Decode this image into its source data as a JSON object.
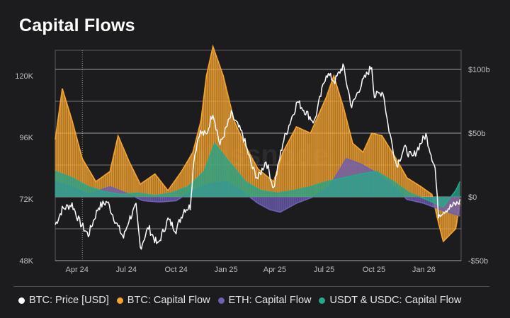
{
  "title": "Capital Flows",
  "watermark": "glassnode",
  "colors": {
    "background": "#1c1c1e",
    "grid": "#ffffff",
    "btc_price": "#ffffff",
    "btc_flow": "#f7a531",
    "eth_flow": "#6f5fb5",
    "usdt_usdc_flow": "#26a98d"
  },
  "legend": [
    {
      "label": "BTC: Price [USD]",
      "color": "#ffffff"
    },
    {
      "label": "BTC: Capital Flow",
      "color": "#f7a531"
    },
    {
      "label": "ETH: Capital Flow",
      "color": "#6f5fb5"
    },
    {
      "label": "USDT & USDC: Capital Flow",
      "color": "#26a98d"
    }
  ],
  "chart_data": {
    "type": "line",
    "x_ticks": [
      "Apr 24",
      "Jul 24",
      "Oct 24",
      "Jan 25",
      "Apr 25",
      "Jul 25",
      "Oct 25",
      "Jan 26"
    ],
    "x_tick_dates": [
      "2024-04-01",
      "2024-07-01",
      "2024-10-01",
      "2025-01-01",
      "2025-04-01",
      "2025-07-01",
      "2025-10-01",
      "2026-01-01"
    ],
    "xlim": [
      "2024-03-01",
      "2026-03-20"
    ],
    "left_axis": {
      "ticks": [
        "48K",
        "72K",
        "96K",
        "120K"
      ],
      "tick_values": [
        48000,
        72000,
        96000,
        120000
      ],
      "ylim": [
        48000,
        130000
      ]
    },
    "right_axis": {
      "ticks": [
        "-$50b",
        "$0",
        "$50b",
        "$100b"
      ],
      "tick_values": [
        -50,
        0,
        50,
        100
      ],
      "ylim": [
        -50,
        115
      ],
      "unit": "USD billions"
    },
    "grid": true,
    "legend_position": "bottom",
    "series": [
      {
        "name": "BTC: Price [USD]",
        "axis": "left",
        "style": "line",
        "x": [
          "2024-03-01",
          "2024-03-14",
          "2024-04-01",
          "2024-04-15",
          "2024-05-01",
          "2024-05-20",
          "2024-06-05",
          "2024-06-25",
          "2024-07-05",
          "2024-07-15",
          "2024-07-28",
          "2024-08-05",
          "2024-08-20",
          "2024-09-06",
          "2024-09-25",
          "2024-10-10",
          "2024-10-25",
          "2024-11-05",
          "2024-11-12",
          "2024-11-22",
          "2024-12-05",
          "2024-12-17",
          "2024-12-30",
          "2025-01-20",
          "2025-02-10",
          "2025-02-28",
          "2025-03-10",
          "2025-03-25",
          "2025-04-08",
          "2025-04-25",
          "2025-05-10",
          "2025-05-22",
          "2025-06-10",
          "2025-06-22",
          "2025-07-14",
          "2025-07-30",
          "2025-08-14",
          "2025-08-30",
          "2025-09-15",
          "2025-10-06",
          "2025-10-11",
          "2025-10-27",
          "2025-11-05",
          "2025-11-21",
          "2025-12-05",
          "2025-12-20",
          "2026-01-05",
          "2026-01-14",
          "2026-01-31",
          "2026-02-06",
          "2026-02-20",
          "2026-03-10",
          "2026-03-18"
        ],
        "values": [
          62000,
          68000,
          70000,
          63000,
          58000,
          69000,
          71000,
          61000,
          57000,
          64000,
          69000,
          53000,
          61000,
          54000,
          64000,
          60000,
          68000,
          69000,
          88000,
          98000,
          97000,
          106000,
          93000,
          105000,
          97000,
          84000,
          80000,
          87000,
          76000,
          94000,
          103000,
          110000,
          105000,
          102000,
          121000,
          118000,
          124000,
          108000,
          116000,
          124000,
          112000,
          114000,
          101000,
          85000,
          92000,
          88000,
          94000,
          97000,
          84000,
          66000,
          68000,
          70000,
          71000
        ]
      },
      {
        "name": "BTC: Capital Flow",
        "axis": "right",
        "style": "area",
        "x": [
          "2024-03-01",
          "2024-03-14",
          "2024-04-01",
          "2024-04-20",
          "2024-05-15",
          "2024-06-10",
          "2024-06-25",
          "2024-07-15",
          "2024-08-05",
          "2024-09-01",
          "2024-09-25",
          "2024-10-20",
          "2024-11-10",
          "2024-11-25",
          "2024-12-05",
          "2024-12-17",
          "2025-01-05",
          "2025-01-25",
          "2025-02-15",
          "2025-03-10",
          "2025-04-08",
          "2025-04-25",
          "2025-05-20",
          "2025-06-15",
          "2025-07-14",
          "2025-07-28",
          "2025-08-15",
          "2025-09-01",
          "2025-09-20",
          "2025-10-06",
          "2025-10-25",
          "2025-11-20",
          "2025-12-10",
          "2026-01-05",
          "2026-01-25",
          "2026-02-06",
          "2026-02-15",
          "2026-03-10",
          "2026-03-18"
        ],
        "values": [
          45,
          85,
          60,
          30,
          12,
          20,
          48,
          28,
          10,
          18,
          5,
          20,
          35,
          60,
          95,
          118,
          95,
          60,
          40,
          22,
          12,
          35,
          55,
          50,
          78,
          95,
          70,
          42,
          35,
          50,
          48,
          30,
          15,
          8,
          2,
          -20,
          -35,
          -25,
          -5
        ]
      },
      {
        "name": "ETH: Capital Flow",
        "axis": "right",
        "style": "area",
        "x": [
          "2024-03-01",
          "2024-04-01",
          "2024-05-01",
          "2024-06-10",
          "2024-07-10",
          "2024-08-10",
          "2024-09-10",
          "2024-10-10",
          "2024-11-10",
          "2024-12-10",
          "2025-01-10",
          "2025-02-10",
          "2025-03-10",
          "2025-04-01",
          "2025-04-20",
          "2025-05-20",
          "2025-06-20",
          "2025-07-20",
          "2025-08-20",
          "2025-09-15",
          "2025-10-10",
          "2025-11-10",
          "2025-12-10",
          "2026-01-10",
          "2026-02-10",
          "2026-03-18"
        ],
        "values": [
          12,
          8,
          2,
          8,
          3,
          -3,
          -4,
          -3,
          5,
          10,
          12,
          4,
          -5,
          -10,
          -12,
          -5,
          0,
          8,
          30,
          26,
          20,
          10,
          -2,
          -5,
          -10,
          -15
        ]
      },
      {
        "name": "USDT & USDC: Capital Flow",
        "axis": "right",
        "style": "area",
        "x": [
          "2024-03-01",
          "2024-04-01",
          "2024-05-01",
          "2024-06-01",
          "2024-07-01",
          "2024-08-01",
          "2024-09-01",
          "2024-10-01",
          "2024-11-01",
          "2024-12-01",
          "2024-12-20",
          "2025-01-15",
          "2025-02-15",
          "2025-03-15",
          "2025-04-15",
          "2025-05-15",
          "2025-06-15",
          "2025-07-15",
          "2025-08-15",
          "2025-09-15",
          "2025-10-15",
          "2025-11-15",
          "2025-12-15",
          "2026-01-15",
          "2026-02-15",
          "2026-03-10",
          "2026-03-18"
        ],
        "values": [
          20,
          15,
          8,
          4,
          2,
          3,
          1,
          3,
          8,
          20,
          42,
          28,
          12,
          5,
          3,
          5,
          8,
          12,
          15,
          18,
          20,
          12,
          3,
          -2,
          -8,
          5,
          12
        ]
      }
    ]
  }
}
